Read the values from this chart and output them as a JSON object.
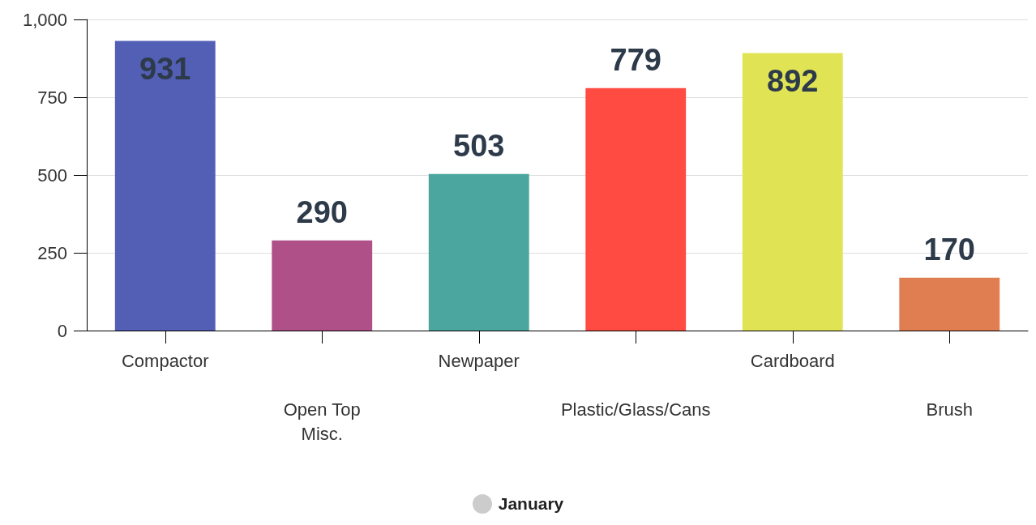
{
  "chart_data": {
    "type": "bar",
    "categories": [
      "Compactor",
      "Open Top\nMisc.",
      "Newpaper",
      "Plastic/Glass/Cans",
      "Cardboard",
      "Brush"
    ],
    "series": [
      {
        "name": "January",
        "color": "#cccccc",
        "values": [
          931,
          290,
          503,
          779,
          892,
          170
        ],
        "colors": [
          "#525fb5",
          "#b05089",
          "#4aa69e",
          "#ff4b41",
          "#e0e454",
          "#e07e52"
        ]
      }
    ],
    "ylim": [
      0,
      1000
    ],
    "yticks": [
      0,
      250,
      500,
      750,
      {
        "value": 1000,
        "label": "1,000"
      }
    ],
    "grid": "y",
    "data_labels": true,
    "legend": "bottom"
  }
}
